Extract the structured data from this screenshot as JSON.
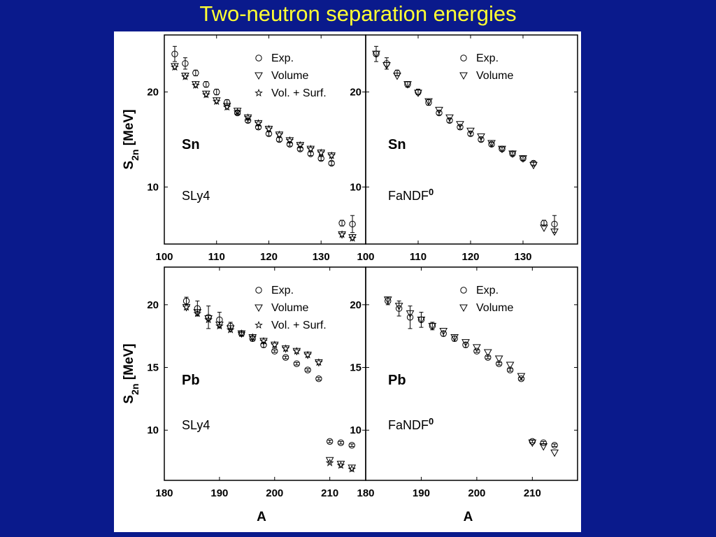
{
  "slide": {
    "title": "Two-neutron separation energies"
  },
  "legend": {
    "exp": "Exp.",
    "volume": "Volume",
    "vol_surf": "Vol. + Surf."
  },
  "chart_data": [
    {
      "type": "scatter",
      "panel": "top-left",
      "nucleus_label": "Sn",
      "model_label": "SLy4",
      "ylabel": "S_2n [MeV]",
      "xlabel": "",
      "xlim": [
        100,
        138
      ],
      "ylim": [
        4,
        26
      ],
      "xticks": [
        100,
        110,
        120,
        130
      ],
      "yticks": [
        10,
        20
      ],
      "legend_entries": [
        "Exp.",
        "Volume",
        "Vol. + Surf."
      ],
      "legend_position": "top-right",
      "series": [
        {
          "name": "Exp.",
          "marker": "circle",
          "x": [
            102,
            104,
            106,
            108,
            110,
            112,
            114,
            116,
            118,
            120,
            122,
            124,
            126,
            128,
            130,
            132,
            134,
            136
          ],
          "y": [
            24.0,
            23.0,
            22.0,
            20.8,
            20.0,
            18.9,
            17.8,
            17.0,
            16.3,
            15.6,
            15.0,
            14.5,
            14.0,
            13.5,
            13.0,
            12.5,
            6.2,
            6.1
          ],
          "yerr": [
            0.8,
            0.6,
            0.3,
            0.3,
            0.3,
            0.3,
            0.2,
            0.2,
            0.2,
            0.2,
            0.2,
            0.2,
            0.2,
            0.2,
            0.2,
            0.2,
            0.3,
            0.9
          ]
        },
        {
          "name": "Volume",
          "marker": "triangle-down",
          "x": [
            102,
            104,
            106,
            108,
            110,
            112,
            114,
            116,
            118,
            120,
            122,
            124,
            126,
            128,
            130,
            132,
            134,
            136
          ],
          "y": [
            22.7,
            21.7,
            20.8,
            19.8,
            19.1,
            18.5,
            18.0,
            17.3,
            16.7,
            16.1,
            15.5,
            14.9,
            14.4,
            14.0,
            13.6,
            13.3,
            5.0,
            4.7
          ]
        },
        {
          "name": "Vol. + Surf.",
          "marker": "star",
          "x": [
            102,
            104,
            106,
            108,
            110,
            112,
            114,
            116,
            118,
            120,
            122,
            124,
            126,
            128,
            130,
            132,
            134,
            136
          ],
          "y": [
            22.6,
            21.6,
            20.7,
            19.7,
            19.0,
            18.4,
            17.9,
            17.3,
            16.7,
            16.1,
            15.5,
            14.9,
            14.4,
            14.0,
            13.6,
            13.3,
            5.0,
            4.6
          ]
        }
      ]
    },
    {
      "type": "scatter",
      "panel": "top-right",
      "nucleus_label": "Sn",
      "model_label": "FaNDF",
      "model_superscript": "0",
      "ylabel": "",
      "xlabel": "",
      "xlim": [
        100,
        138
      ],
      "ylim": [
        4,
        26
      ],
      "xticks": [
        100,
        110,
        120,
        130
      ],
      "yticks": [
        10,
        20
      ],
      "legend_entries": [
        "Exp.",
        "Volume"
      ],
      "legend_position": "top-right",
      "series": [
        {
          "name": "Exp.",
          "marker": "circle",
          "x": [
            102,
            104,
            106,
            108,
            110,
            112,
            114,
            116,
            118,
            120,
            122,
            124,
            126,
            128,
            130,
            132,
            134,
            136
          ],
          "y": [
            24.0,
            23.0,
            22.0,
            20.8,
            20.0,
            18.9,
            17.8,
            17.0,
            16.3,
            15.6,
            15.0,
            14.5,
            14.0,
            13.5,
            13.0,
            12.5,
            6.2,
            6.1
          ],
          "yerr": [
            0.8,
            0.6,
            0.3,
            0.3,
            0.3,
            0.3,
            0.2,
            0.2,
            0.2,
            0.2,
            0.2,
            0.2,
            0.2,
            0.2,
            0.2,
            0.2,
            0.3,
            0.9
          ]
        },
        {
          "name": "Volume",
          "marker": "triangle-down",
          "x": [
            102,
            104,
            106,
            108,
            110,
            112,
            114,
            116,
            118,
            120,
            122,
            124,
            126,
            128,
            130,
            132,
            134,
            136
          ],
          "y": [
            24.0,
            22.8,
            21.7,
            20.8,
            19.9,
            19.0,
            18.1,
            17.3,
            16.6,
            15.9,
            15.3,
            14.6,
            14.0,
            13.5,
            13.0,
            12.3,
            5.7,
            5.3
          ]
        }
      ]
    },
    {
      "type": "scatter",
      "panel": "bottom-left",
      "nucleus_label": "Pb",
      "model_label": "SLy4",
      "ylabel": "S_2n [MeV]",
      "xlabel": "A",
      "xlim": [
        180,
        216
      ],
      "ylim": [
        6,
        23
      ],
      "xticks": [
        180,
        190,
        200,
        210
      ],
      "yticks": [
        10,
        15,
        20
      ],
      "legend_entries": [
        "Exp.",
        "Volume",
        "Vol. + Surf."
      ],
      "legend_position": "top-right",
      "series": [
        {
          "name": "Exp.",
          "marker": "circle",
          "x": [
            184,
            186,
            188,
            190,
            192,
            194,
            196,
            198,
            200,
            202,
            204,
            206,
            208,
            210,
            212,
            214
          ],
          "y": [
            20.3,
            19.7,
            19.0,
            18.8,
            18.3,
            17.7,
            17.3,
            16.8,
            16.3,
            15.8,
            15.3,
            14.8,
            14.1,
            9.1,
            9.0,
            8.8
          ],
          "yerr": [
            0.3,
            0.6,
            0.9,
            0.6,
            0.3,
            0.2,
            0.2,
            0.2,
            0.1,
            0.1,
            0.1,
            0.1,
            0.1,
            0.1,
            0.1,
            0.1
          ]
        },
        {
          "name": "Volume",
          "marker": "triangle-down",
          "x": [
            184,
            186,
            188,
            190,
            192,
            194,
            196,
            198,
            200,
            202,
            204,
            206,
            208,
            210,
            212,
            214
          ],
          "y": [
            19.8,
            19.4,
            18.9,
            18.4,
            18.1,
            17.7,
            17.4,
            17.1,
            16.8,
            16.5,
            16.3,
            16.0,
            15.4,
            7.6,
            7.3,
            7.0
          ]
        },
        {
          "name": "Vol. + Surf.",
          "marker": "star",
          "x": [
            184,
            186,
            188,
            190,
            192,
            194,
            196,
            198,
            200,
            202,
            204,
            206,
            208,
            210,
            212,
            214
          ],
          "y": [
            19.8,
            19.3,
            18.8,
            18.3,
            18.0,
            17.7,
            17.4,
            17.1,
            16.8,
            16.5,
            16.3,
            16.0,
            15.4,
            7.4,
            7.2,
            6.9
          ]
        }
      ]
    },
    {
      "type": "scatter",
      "panel": "bottom-right",
      "nucleus_label": "Pb",
      "model_label": "FaNDF",
      "model_superscript": "0",
      "ylabel": "",
      "xlabel": "A",
      "xlim": [
        180,
        216
      ],
      "ylim": [
        6,
        23
      ],
      "xticks": [
        180,
        190,
        200,
        210
      ],
      "yticks": [
        10,
        15,
        20
      ],
      "legend_entries": [
        "Exp.",
        "Volume"
      ],
      "legend_position": "top-right",
      "series": [
        {
          "name": "Exp.",
          "marker": "circle",
          "x": [
            184,
            186,
            188,
            190,
            192,
            194,
            196,
            198,
            200,
            202,
            204,
            206,
            208,
            210,
            212,
            214
          ],
          "y": [
            20.3,
            19.7,
            19.0,
            18.8,
            18.3,
            17.7,
            17.3,
            16.8,
            16.3,
            15.8,
            15.3,
            14.8,
            14.1,
            9.1,
            9.0,
            8.8
          ],
          "yerr": [
            0.3,
            0.6,
            0.9,
            0.6,
            0.3,
            0.2,
            0.2,
            0.2,
            0.1,
            0.1,
            0.1,
            0.1,
            0.1,
            0.1,
            0.1,
            0.1
          ]
        },
        {
          "name": "Volume",
          "marker": "triangle-down",
          "x": [
            184,
            186,
            188,
            190,
            192,
            194,
            196,
            198,
            200,
            202,
            204,
            206,
            208,
            210,
            212,
            214
          ],
          "y": [
            20.4,
            19.9,
            19.3,
            18.8,
            18.3,
            17.9,
            17.4,
            17.0,
            16.6,
            16.2,
            15.7,
            15.2,
            14.3,
            9.0,
            8.7,
            8.2
          ]
        }
      ]
    }
  ]
}
